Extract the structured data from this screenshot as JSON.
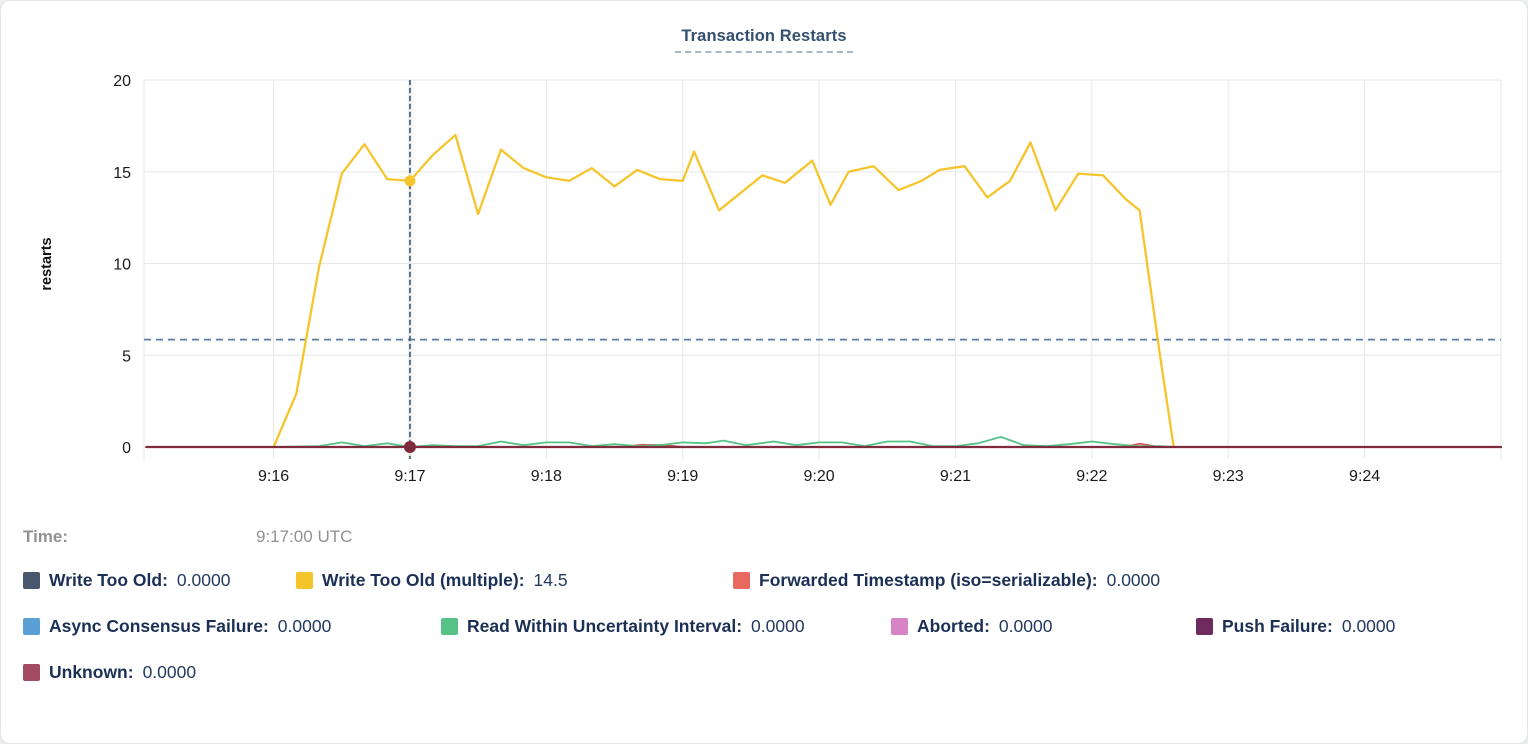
{
  "time_row": {
    "label": "Time:",
    "value": "9:17:00 UTC"
  },
  "legend": {
    "rows": [
      [
        {
          "label": "Write Too Old:",
          "value": "0.0000",
          "color": "#47586f"
        },
        {
          "label": "Write Too Old (multiple):",
          "value": "14.5",
          "color": "#f5c32a"
        },
        {
          "label": "Forwarded Timestamp (iso=serializable):",
          "value": "0.0000",
          "color": "#e8695d"
        }
      ],
      [
        {
          "label": "Async Consensus Failure:",
          "value": "0.0000",
          "color": "#5a9fd6"
        },
        {
          "label": "Read Within Uncertainty Interval:",
          "value": "0.0000",
          "color": "#57c286"
        },
        {
          "label": "Aborted:",
          "value": "0.0000",
          "color": "#d784c7"
        },
        {
          "label": "Push Failure:",
          "value": "0.0000",
          "color": "#6e2b5e"
        }
      ],
      [
        {
          "label": "Unknown:",
          "value": "0.0000",
          "color": "#a34b5f"
        }
      ]
    ]
  },
  "chart_data": {
    "type": "line",
    "title": "Transaction Restarts",
    "ylabel": "restarts",
    "ylim": [
      0,
      20
    ],
    "yticks": [
      0,
      5,
      10,
      15,
      20
    ],
    "x_unit": "seconds after 9:15:00",
    "x_domain": [
      3,
      600
    ],
    "grid": true,
    "xticks": [
      {
        "t": 60,
        "label": "9:16"
      },
      {
        "t": 120,
        "label": "9:17"
      },
      {
        "t": 180,
        "label": "9:18"
      },
      {
        "t": 240,
        "label": "9:19"
      },
      {
        "t": 300,
        "label": "9:20"
      },
      {
        "t": 360,
        "label": "9:21"
      },
      {
        "t": 420,
        "label": "9:22"
      },
      {
        "t": 480,
        "label": "9:23"
      },
      {
        "t": 540,
        "label": "9:24"
      }
    ],
    "threshold_line": {
      "value": 5.85,
      "color": "#5c7da0"
    },
    "crosshair": {
      "t": 120,
      "time": "9:17:00 UTC",
      "band_color": "#e2e2e2",
      "line_color": "#33506f",
      "dots": [
        {
          "series": "Write Too Old (multiple)",
          "value": 14.5,
          "color": "#f6c52e",
          "r": 5.5
        },
        {
          "series": "Unknown",
          "value": 0,
          "color": "#7e2b3e",
          "r": 6
        }
      ]
    },
    "style": {
      "grid_color": "#e7e7e7",
      "tick_color": "#dddddd"
    },
    "series": [
      {
        "name": "Write Too Old",
        "color": "#47586f",
        "width": 1.6,
        "flat": 0,
        "range": [
          4,
          600
        ]
      },
      {
        "name": "Async Consensus Failure",
        "color": "#5a9fd6",
        "width": 1.6,
        "flat": 0,
        "range": [
          4,
          600
        ]
      },
      {
        "name": "Aborted",
        "color": "#d784c7",
        "width": 1.6,
        "flat": 0,
        "range": [
          4,
          600
        ]
      },
      {
        "name": "Push Failure",
        "color": "#6e2b5e",
        "width": 1.6,
        "flat": 0,
        "range": [
          4,
          600
        ]
      },
      {
        "name": "Forwarded Timestamp (iso=serializable)",
        "color": "#d95c52",
        "width": 1.8,
        "points": [
          [
            4,
            0
          ],
          [
            213,
            0
          ],
          [
            222,
            0.12
          ],
          [
            232,
            0.1
          ],
          [
            240,
            0
          ],
          [
            434,
            0
          ],
          [
            441,
            0.18
          ],
          [
            450,
            0
          ],
          [
            600,
            0
          ]
        ]
      },
      {
        "name": "Read Within Uncertainty Interval",
        "color": "#57c286",
        "width": 1.8,
        "points": [
          [
            60,
            0
          ],
          [
            80,
            0.05
          ],
          [
            90,
            0.25
          ],
          [
            100,
            0.05
          ],
          [
            110,
            0.2
          ],
          [
            120,
            0
          ],
          [
            130,
            0.1
          ],
          [
            140,
            0.05
          ],
          [
            150,
            0.05
          ],
          [
            160,
            0.3
          ],
          [
            170,
            0.1
          ],
          [
            180,
            0.25
          ],
          [
            190,
            0.25
          ],
          [
            200,
            0.05
          ],
          [
            210,
            0.15
          ],
          [
            220,
            0.05
          ],
          [
            230,
            0.1
          ],
          [
            240,
            0.25
          ],
          [
            250,
            0.2
          ],
          [
            258,
            0.35
          ],
          [
            268,
            0.1
          ],
          [
            280,
            0.3
          ],
          [
            290,
            0.1
          ],
          [
            300,
            0.25
          ],
          [
            310,
            0.25
          ],
          [
            320,
            0.05
          ],
          [
            330,
            0.3
          ],
          [
            340,
            0.3
          ],
          [
            350,
            0.05
          ],
          [
            360,
            0.05
          ],
          [
            370,
            0.2
          ],
          [
            380,
            0.55
          ],
          [
            390,
            0.1
          ],
          [
            400,
            0.05
          ],
          [
            410,
            0.15
          ],
          [
            420,
            0.3
          ],
          [
            430,
            0.15
          ],
          [
            440,
            0.05
          ],
          [
            450,
            0.05
          ],
          [
            456,
            0
          ]
        ]
      },
      {
        "name": "Write Too Old (multiple)",
        "color": "#f6c52e",
        "width": 2.3,
        "points": [
          [
            60,
            0
          ],
          [
            70,
            2.9
          ],
          [
            80,
            9.8
          ],
          [
            90,
            14.9
          ],
          [
            100,
            16.5
          ],
          [
            110,
            14.6
          ],
          [
            120,
            14.5
          ],
          [
            130,
            15.9
          ],
          [
            140,
            17.0
          ],
          [
            150,
            12.7
          ],
          [
            160,
            16.2
          ],
          [
            170,
            15.2
          ],
          [
            180,
            14.7
          ],
          [
            190,
            14.5
          ],
          [
            200,
            15.2
          ],
          [
            210,
            14.2
          ],
          [
            220,
            15.1
          ],
          [
            230,
            14.6
          ],
          [
            240,
            14.5
          ],
          [
            245,
            16.1
          ],
          [
            256,
            12.9
          ],
          [
            275,
            14.8
          ],
          [
            285,
            14.4
          ],
          [
            297,
            15.6
          ],
          [
            305,
            13.2
          ],
          [
            313,
            15.0
          ],
          [
            324,
            15.3
          ],
          [
            335,
            14.0
          ],
          [
            345,
            14.5
          ],
          [
            353,
            15.1
          ],
          [
            364,
            15.3
          ],
          [
            374,
            13.6
          ],
          [
            384,
            14.5
          ],
          [
            393,
            16.6
          ],
          [
            404,
            12.9
          ],
          [
            414,
            14.9
          ],
          [
            425,
            14.8
          ],
          [
            435,
            13.5
          ],
          [
            441,
            12.9
          ],
          [
            450,
            5.0
          ],
          [
            456,
            0
          ]
        ]
      },
      {
        "name": "Unknown",
        "color": "#7e2b3e",
        "width": 2.2,
        "flat": 0,
        "range": [
          4,
          600
        ]
      }
    ]
  }
}
